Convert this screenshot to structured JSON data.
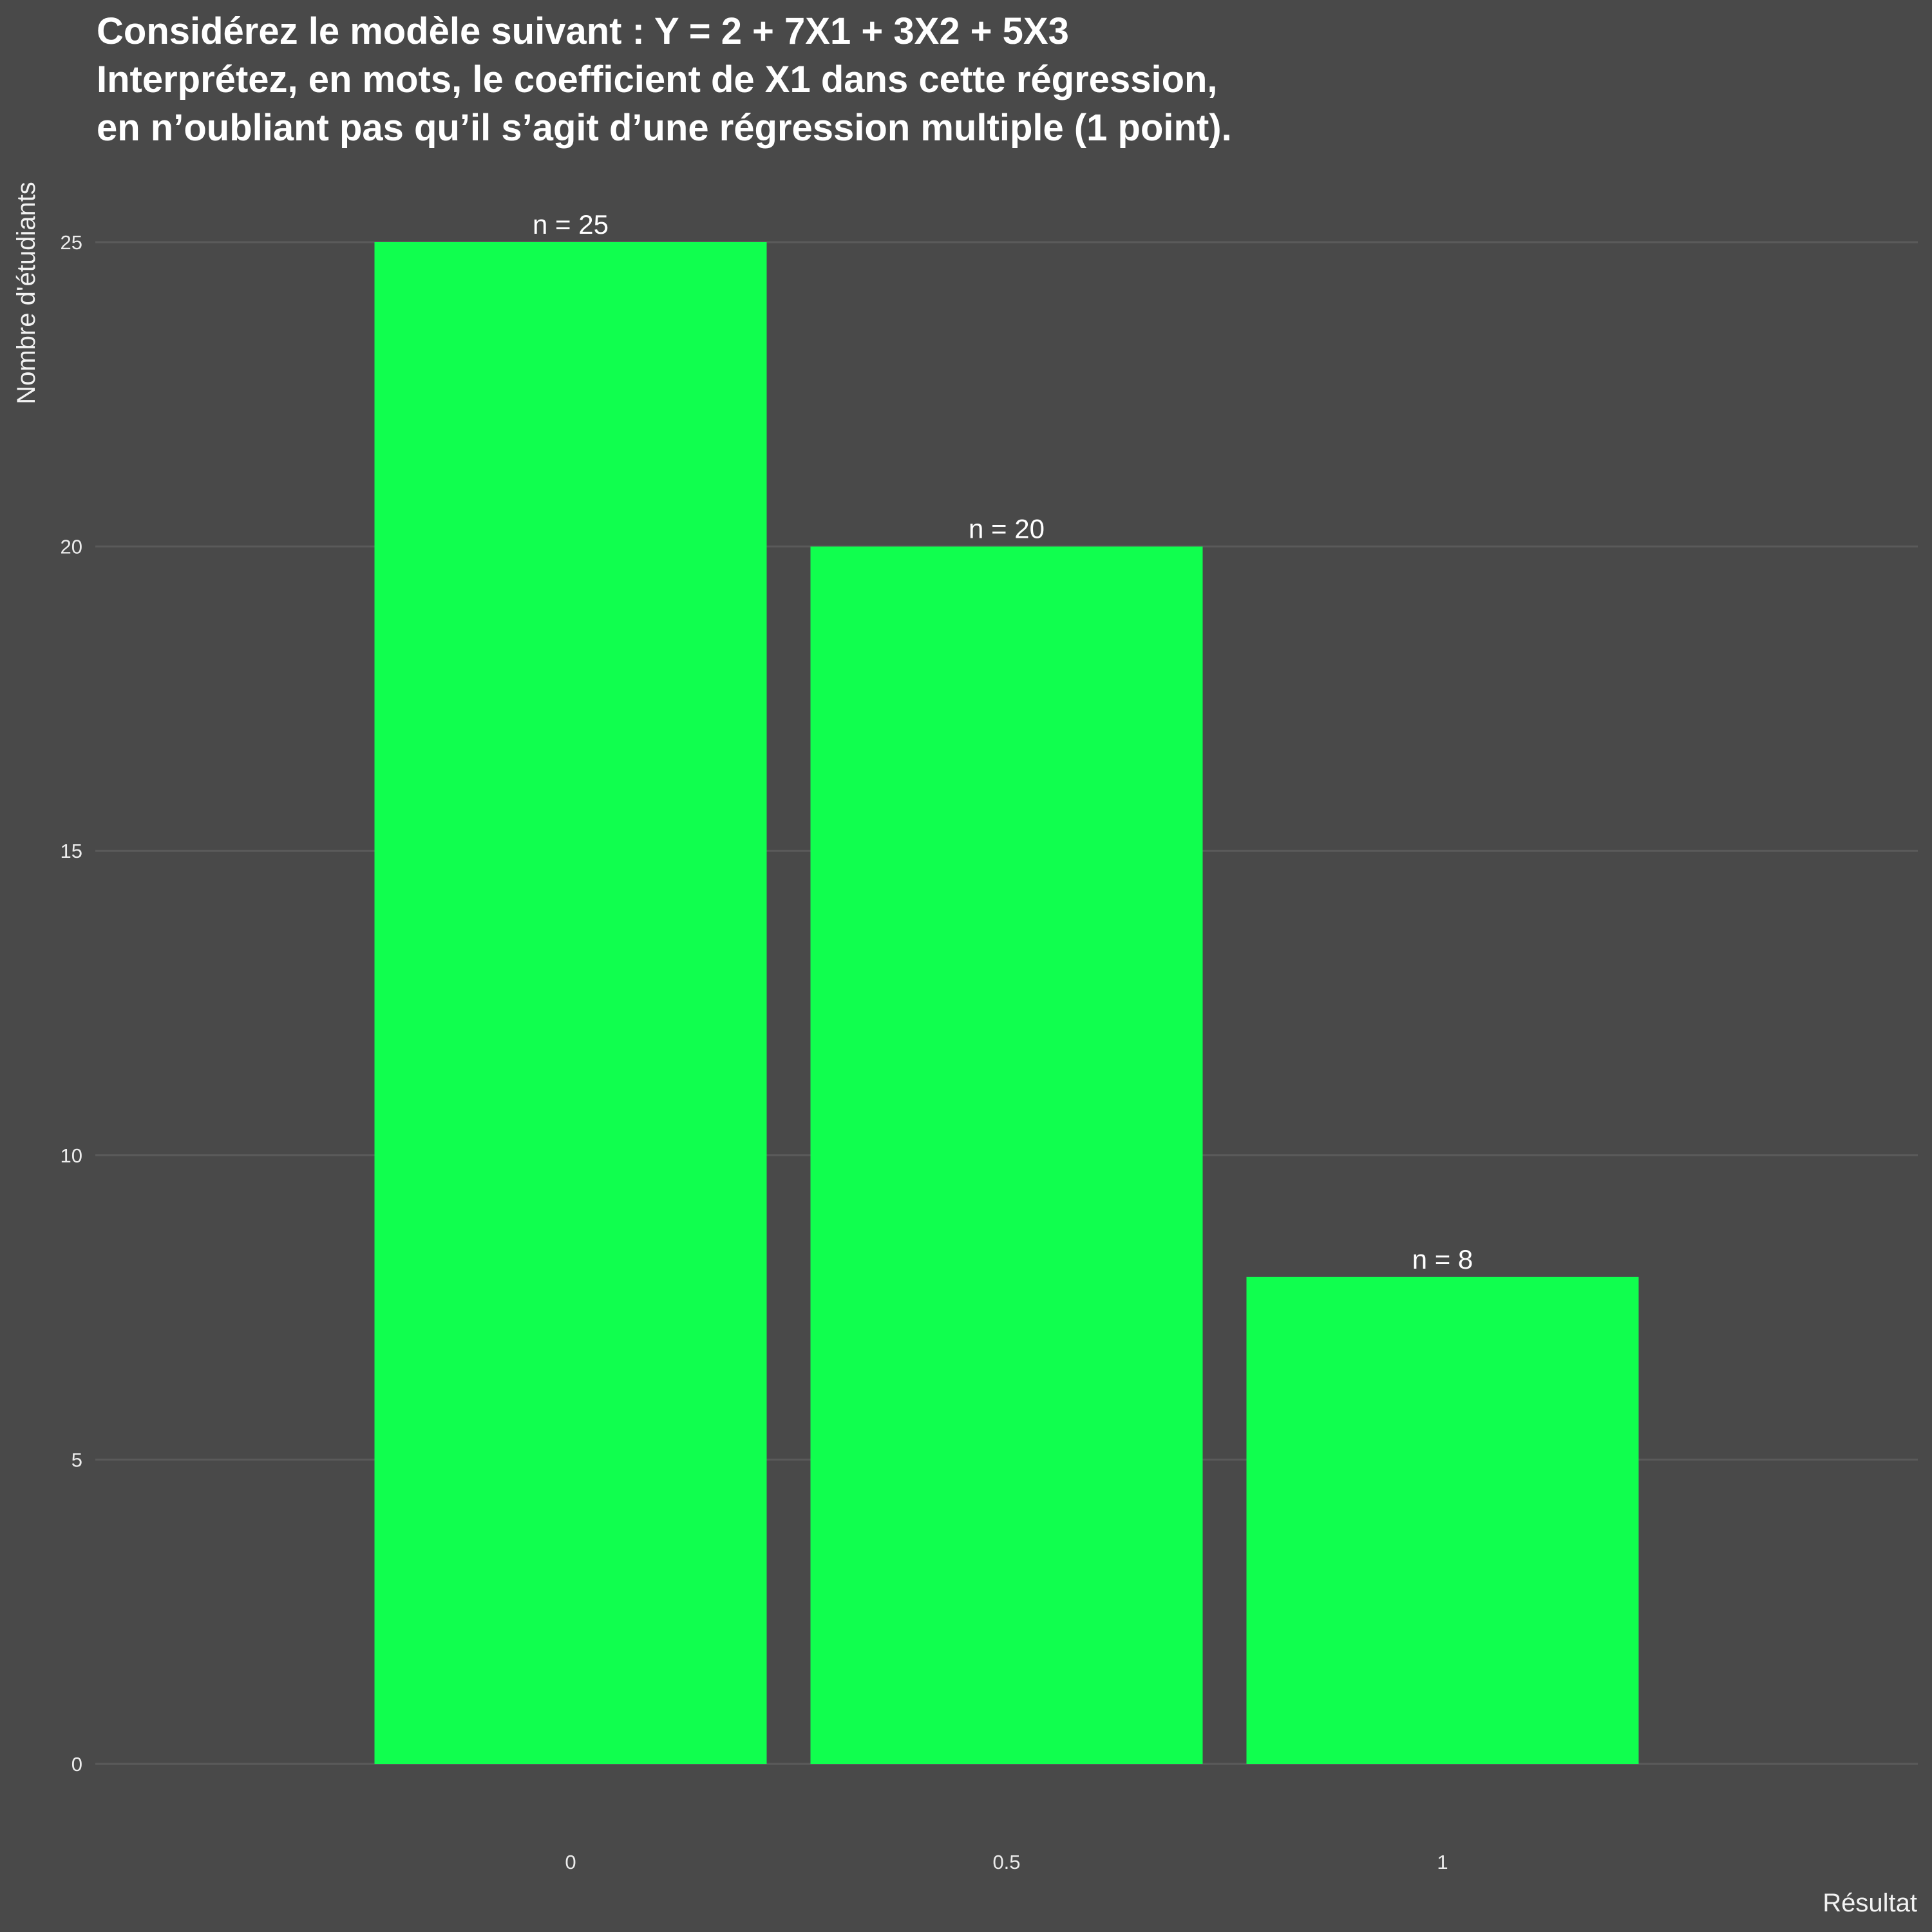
{
  "chart_data": {
    "type": "bar",
    "title_lines": [
      "Considérez le modèle suivant : Y = 2 + 7X1 + 3X2 + 5X3",
      "Interprétez, en mots, le coefficient de X1 dans cette régression,",
      "en n’oubliant pas qu’il s’agit d’une régression multiple (1 point)."
    ],
    "xlabel": "Résultat",
    "ylabel": "Nombre d'étudiants",
    "categories": [
      "0",
      "0.5",
      "1"
    ],
    "values": [
      25,
      20,
      8
    ],
    "data_labels": [
      "n = 25",
      "n = 20",
      "n = 8"
    ],
    "y_ticks": [
      0,
      5,
      10,
      15,
      20,
      25
    ],
    "ylim": [
      0,
      25
    ],
    "grid": true,
    "legend": "none",
    "colors": {
      "background": "#494949",
      "bar": "#10ff4e",
      "grid": "#5a5a5a",
      "text": "#ffffff"
    }
  }
}
